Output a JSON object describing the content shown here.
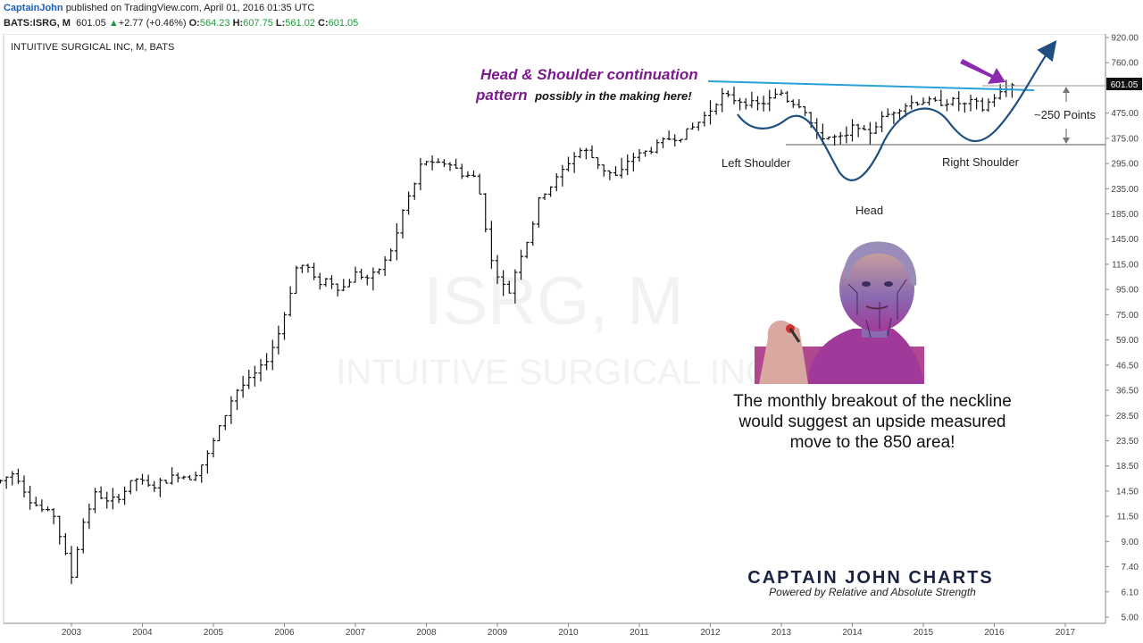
{
  "header": {
    "author": "CaptainJohn",
    "published_text": "published on TradingView.com, April 01, 2016 01:35 UTC",
    "symbol": "BATS:ISRG, M",
    "last": "601.05",
    "change": "+2.77 (+0.46%)",
    "open_label": "O:",
    "open": "564.23",
    "high_label": "H:",
    "high": "607.75",
    "low_label": "L:",
    "low": "561.02",
    "close_label": "C:",
    "close": "601.05",
    "up_color": "#1e9b3c"
  },
  "chart_data": {
    "type": "ohlc-bar",
    "title": "INTUITIVE SURGICAL INC, M, BATS",
    "watermark": [
      "ISRG, M",
      "INTUITIVE SURGICAL INC"
    ],
    "scale": "log",
    "x_ticks": [
      "2003",
      "2004",
      "2005",
      "2006",
      "2007",
      "2008",
      "2009",
      "2010",
      "2011",
      "2012",
      "2013",
      "2014",
      "2015",
      "2016",
      "2017"
    ],
    "y_ticks": [
      "920.00",
      "760.00",
      "601.05",
      "475.00",
      "375.00",
      "295.00",
      "235.00",
      "185.00",
      "145.00",
      "115.00",
      "95.00",
      "75.00",
      "59.00",
      "46.50",
      "36.50",
      "28.50",
      "23.50",
      "18.50",
      "14.50",
      "11.50",
      "9.00",
      "7.40",
      "6.10",
      "5.00"
    ],
    "last_price_label": "601.05",
    "series_path": [
      [
        2002.0,
        17.0
      ],
      [
        2002.2,
        18.5
      ],
      [
        2002.4,
        14.5
      ],
      [
        2002.6,
        13.0
      ],
      [
        2002.75,
        12.5
      ],
      [
        2002.9,
        9.0
      ],
      [
        2003.0,
        7.2
      ],
      [
        2003.15,
        11.5
      ],
      [
        2003.35,
        15.5
      ],
      [
        2003.5,
        14.0
      ],
      [
        2003.7,
        15.0
      ],
      [
        2003.9,
        17.5
      ],
      [
        2004.1,
        16.0
      ],
      [
        2004.3,
        17.0
      ],
      [
        2004.5,
        18.0
      ],
      [
        2004.7,
        17.5
      ],
      [
        2004.9,
        21.0
      ],
      [
        2005.1,
        28.0
      ],
      [
        2005.3,
        38.0
      ],
      [
        2005.5,
        42.0
      ],
      [
        2005.7,
        48.0
      ],
      [
        2005.9,
        62.0
      ],
      [
        2006.05,
        85.0
      ],
      [
        2006.15,
        115.0
      ],
      [
        2006.3,
        120.0
      ],
      [
        2006.45,
        100.0
      ],
      [
        2006.6,
        105.0
      ],
      [
        2006.8,
        95.0
      ],
      [
        2007.0,
        110.0
      ],
      [
        2007.2,
        105.0
      ],
      [
        2007.4,
        120.0
      ],
      [
        2007.55,
        145.0
      ],
      [
        2007.7,
        210.0
      ],
      [
        2007.8,
        230.0
      ],
      [
        2007.95,
        310.0
      ],
      [
        2008.1,
        290.0
      ],
      [
        2008.3,
        300.0
      ],
      [
        2008.5,
        270.0
      ],
      [
        2008.7,
        260.0
      ],
      [
        2008.8,
        195.0
      ],
      [
        2008.9,
        125.0
      ],
      [
        2009.0,
        110.0
      ],
      [
        2009.15,
        90.0
      ],
      [
        2009.3,
        125.0
      ],
      [
        2009.45,
        155.0
      ],
      [
        2009.6,
        220.0
      ],
      [
        2009.8,
        250.0
      ],
      [
        2010.0,
        300.0
      ],
      [
        2010.2,
        340.0
      ],
      [
        2010.3,
        320.0
      ],
      [
        2010.5,
        280.0
      ],
      [
        2010.7,
        260.0
      ],
      [
        2010.85,
        310.0
      ],
      [
        2011.0,
        320.0
      ],
      [
        2011.2,
        340.0
      ],
      [
        2011.4,
        370.0
      ],
      [
        2011.6,
        380.0
      ],
      [
        2011.8,
        420.0
      ],
      [
        2012.0,
        480.0
      ],
      [
        2012.15,
        550.0
      ],
      [
        2012.3,
        530.0
      ],
      [
        2012.45,
        520.0
      ],
      [
        2012.65,
        500.0
      ],
      [
        2012.8,
        520.0
      ],
      [
        2013.0,
        560.0
      ],
      [
        2013.1,
        520.0
      ],
      [
        2013.3,
        500.0
      ],
      [
        2013.5,
        380.0
      ],
      [
        2013.7,
        375.0
      ],
      [
        2013.9,
        370.0
      ],
      [
        2014.05,
        430.0
      ],
      [
        2014.2,
        380.0
      ],
      [
        2014.4,
        440.0
      ],
      [
        2014.6,
        480.0
      ],
      [
        2014.8,
        510.0
      ],
      [
        2015.0,
        520.0
      ],
      [
        2015.2,
        510.0
      ],
      [
        2015.4,
        520.0
      ],
      [
        2015.6,
        500.0
      ],
      [
        2015.7,
        520.0
      ],
      [
        2015.85,
        480.0
      ],
      [
        2015.95,
        530.0
      ],
      [
        2016.1,
        560.0
      ],
      [
        2016.25,
        601.05
      ]
    ],
    "annotations": {
      "pattern_title": "Head & Shoulder  continuation",
      "pattern_word": "pattern",
      "pattern_rest": "possibly in the making here!",
      "left_shoulder": "Left Shoulder",
      "head": "Head",
      "right_shoulder": "Right Shoulder",
      "points": "~250 Points",
      "commentary": [
        "The monthly breakout of the neckline",
        "would suggest an upside measured",
        "move to the 850 area!"
      ],
      "brand": "CAPTAIN JOHN CHARTS",
      "tagline": "Powered by Relative and  Absolute Strength"
    },
    "colors": {
      "bars": "#111111",
      "neckline": "#2aa0d8",
      "pattern": "#1f4f80",
      "title": "#7a1a8c",
      "arrow": "#8b2ab0",
      "brand": "#1c2341"
    }
  }
}
